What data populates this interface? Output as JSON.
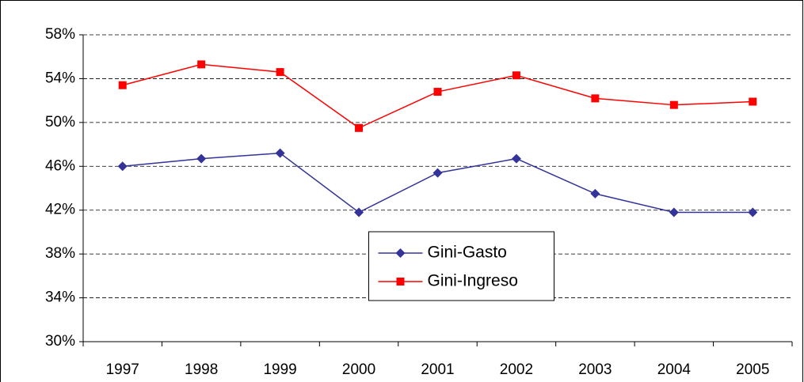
{
  "chart_data": {
    "type": "line",
    "categories": [
      "1997",
      "1998",
      "1999",
      "2000",
      "2001",
      "2002",
      "2003",
      "2004",
      "2005"
    ],
    "series": [
      {
        "name": "Gini-Gasto",
        "color": "#333399",
        "marker": "diamond",
        "values": [
          46.0,
          46.7,
          47.2,
          41.8,
          45.4,
          46.7,
          43.5,
          41.8,
          41.8
        ]
      },
      {
        "name": "Gini-Ingreso",
        "color": "#ff0000",
        "marker": "square",
        "values": [
          53.4,
          55.3,
          54.6,
          49.5,
          52.8,
          54.3,
          52.2,
          51.6,
          51.9
        ]
      }
    ],
    "ylim": [
      30,
      58
    ],
    "yticks": [
      {
        "value": 30,
        "label": "30%"
      },
      {
        "value": 34,
        "label": "34%"
      },
      {
        "value": 38,
        "label": "38%"
      },
      {
        "value": 42,
        "label": "42%"
      },
      {
        "value": 46,
        "label": "46%"
      },
      {
        "value": 50,
        "label": "50%"
      },
      {
        "value": 54,
        "label": "54%"
      },
      {
        "value": 58,
        "label": "58%"
      }
    ],
    "grid": true,
    "legend": "center"
  }
}
